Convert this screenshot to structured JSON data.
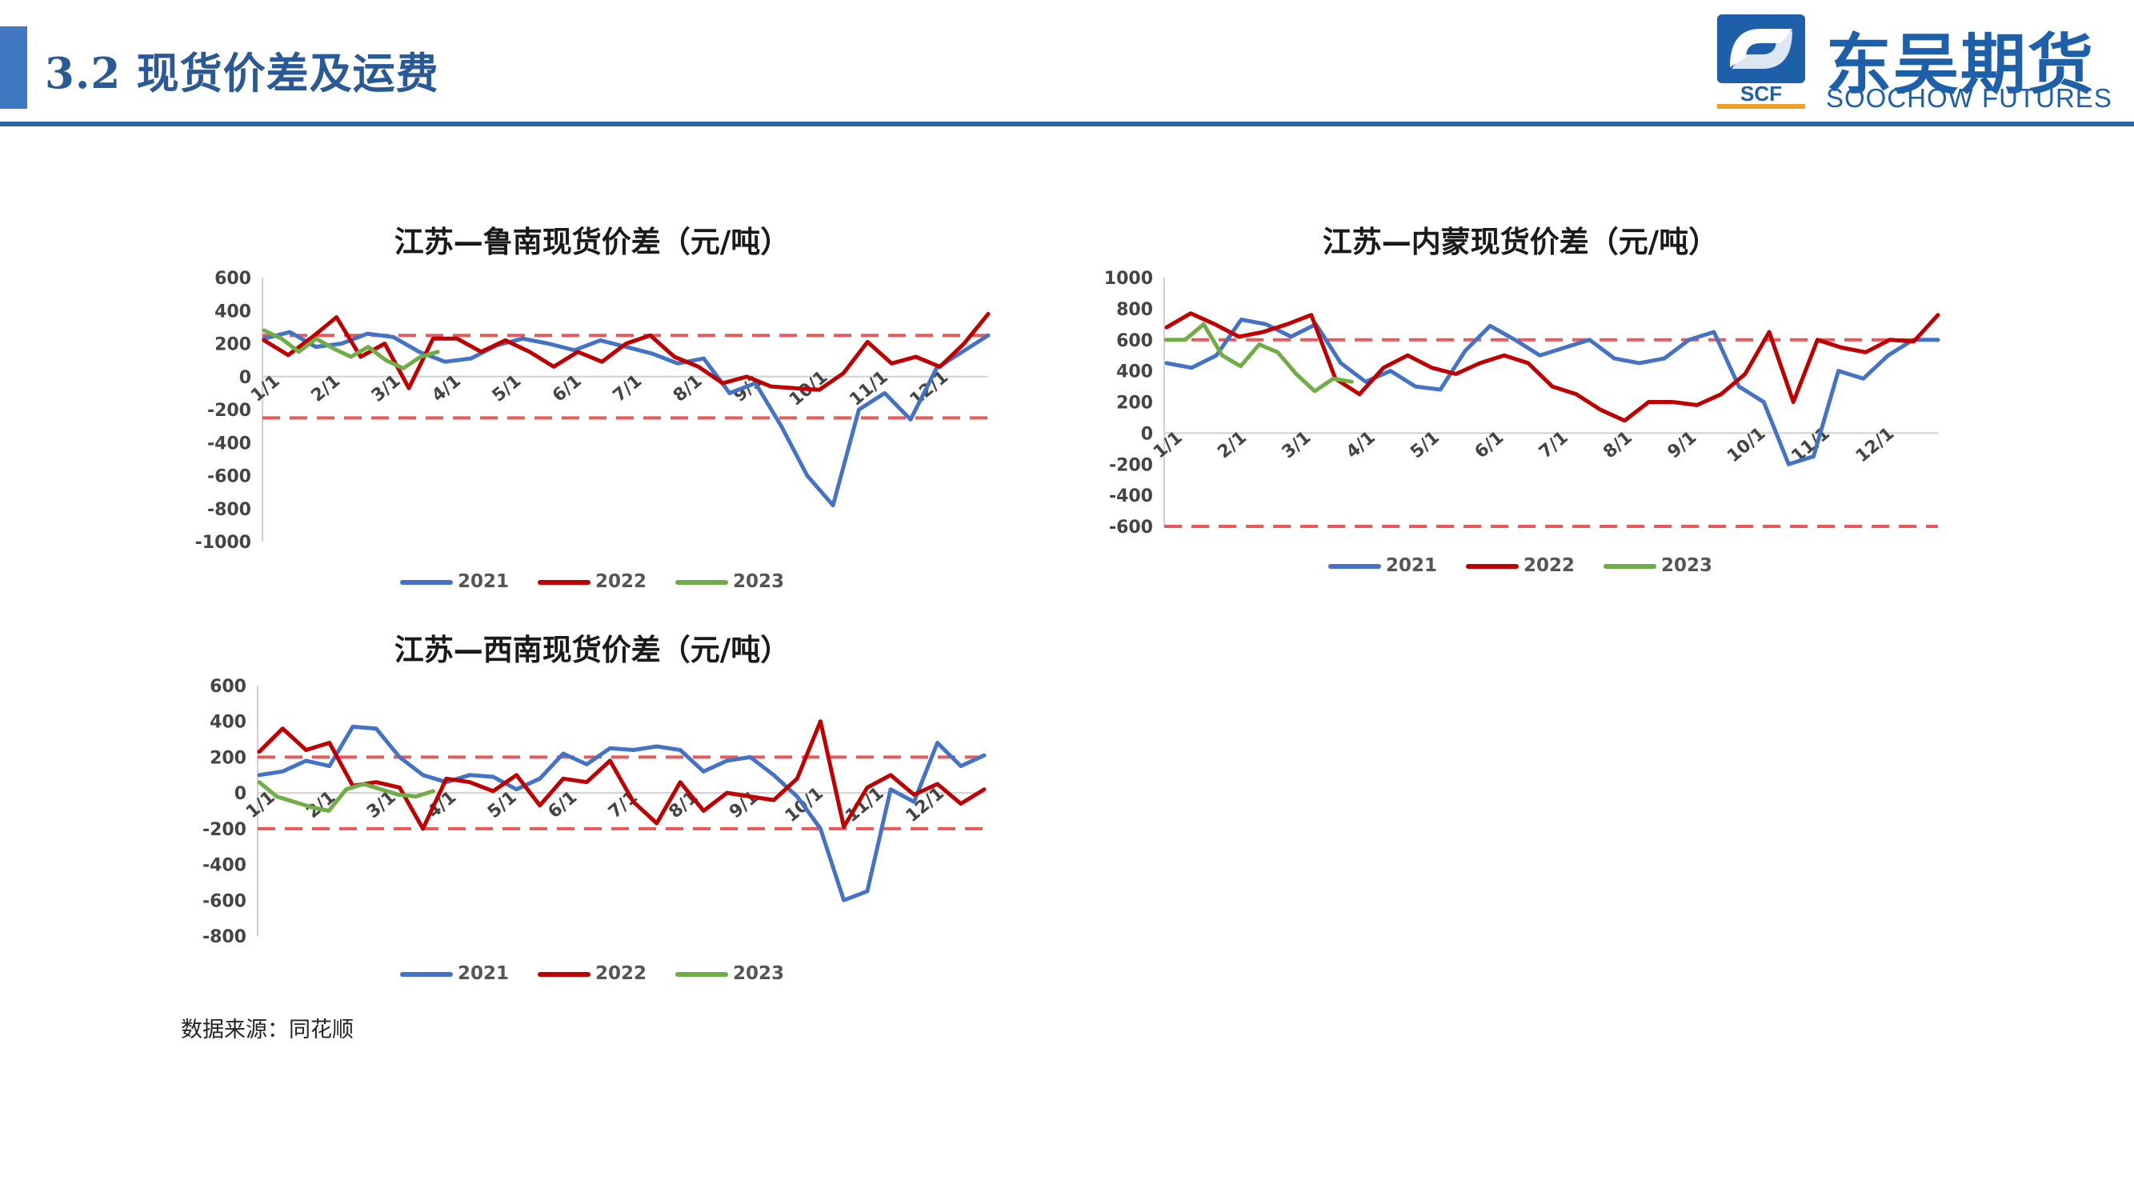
{
  "header": {
    "title": "3.2 现货价差及运费",
    "logo_cn": "东吴期货",
    "logo_en": "SOOCHOW FUTURES",
    "logo_mark_text": "SCF"
  },
  "source": "数据来源：同花顺",
  "colors": {
    "s2021": "#4472c4",
    "s2022": "#c00000",
    "s2023": "#70ad47",
    "ref": "#e85a5a",
    "accent": "#2d64a8"
  },
  "chart_data": [
    {
      "type": "line",
      "title": "江苏—鲁南现货价差（元/吨）",
      "ylim": [
        -1000,
        600
      ],
      "yticks": [
        600,
        400,
        200,
        0,
        -200,
        -400,
        -600,
        -800,
        -1000
      ],
      "xticks": [
        "1/1",
        "2/1",
        "3/1",
        "4/1",
        "5/1",
        "6/1",
        "7/1",
        "8/1",
        "9/1",
        "10/1",
        "11/1",
        "12/1"
      ],
      "ref_lines": [
        250,
        -250
      ],
      "series": [
        {
          "name": "2021",
          "values": [
            230,
            270,
            180,
            200,
            260,
            240,
            150,
            90,
            110,
            190,
            230,
            200,
            160,
            220,
            180,
            140,
            80,
            110,
            -100,
            -40,
            -300,
            -600,
            -780,
            -200,
            -100,
            -260,
            50,
            150,
            250
          ]
        },
        {
          "name": "2022",
          "values": [
            220,
            130,
            240,
            360,
            120,
            200,
            -70,
            230,
            230,
            150,
            220,
            150,
            60,
            150,
            90,
            200,
            250,
            120,
            60,
            -40,
            0,
            -60,
            -70,
            -80,
            20,
            210,
            80,
            120,
            60,
            200,
            380
          ]
        },
        {
          "name": "2023",
          "values": [
            280,
            230,
            150,
            230,
            170,
            120,
            180,
            100,
            50,
            120,
            150
          ]
        }
      ]
    },
    {
      "type": "line",
      "title": "江苏—内蒙现货价差（元/吨）",
      "ylim": [
        -600,
        1000
      ],
      "yticks": [
        1000,
        800,
        600,
        400,
        200,
        0,
        -200,
        -400,
        -600
      ],
      "xticks": [
        "1/1",
        "2/1",
        "3/1",
        "4/1",
        "5/1",
        "6/1",
        "7/1",
        "8/1",
        "9/1",
        "10/1",
        "11/1",
        "12/1"
      ],
      "ref_lines": [
        600,
        -600
      ],
      "series": [
        {
          "name": "2021",
          "values": [
            450,
            420,
            500,
            730,
            700,
            620,
            700,
            450,
            330,
            400,
            300,
            280,
            530,
            690,
            600,
            500,
            550,
            600,
            480,
            450,
            480,
            600,
            650,
            300,
            200,
            -200,
            -150,
            400,
            350,
            500,
            600,
            600
          ]
        },
        {
          "name": "2022",
          "values": [
            680,
            770,
            700,
            620,
            650,
            700,
            760,
            350,
            250,
            420,
            500,
            420,
            380,
            450,
            500,
            450,
            300,
            250,
            150,
            80,
            200,
            200,
            180,
            250,
            380,
            650,
            200,
            600,
            550,
            520,
            600,
            590,
            760
          ]
        },
        {
          "name": "2023",
          "values": [
            600,
            600,
            700,
            500,
            430,
            570,
            520,
            380,
            270,
            350,
            330
          ]
        }
      ]
    },
    {
      "type": "line",
      "title": "江苏—西南现货价差（元/吨）",
      "ylim": [
        -800,
        600
      ],
      "yticks": [
        600,
        400,
        200,
        0,
        -200,
        -400,
        -600,
        -800
      ],
      "xticks": [
        "1/1",
        "2/1",
        "3/1",
        "4/1",
        "5/1",
        "6/1",
        "7/1",
        "8/1",
        "9/1",
        "10/1",
        "11/1",
        "12/1"
      ],
      "ref_lines": [
        200,
        -200
      ],
      "series": [
        {
          "name": "2021",
          "values": [
            100,
            120,
            180,
            150,
            370,
            360,
            200,
            100,
            60,
            100,
            90,
            20,
            80,
            220,
            160,
            250,
            240,
            260,
            240,
            120,
            180,
            200,
            100,
            -20,
            -200,
            -600,
            -550,
            20,
            -50,
            280,
            150,
            210
          ]
        },
        {
          "name": "2022",
          "values": [
            230,
            360,
            240,
            280,
            40,
            60,
            30,
            -200,
            80,
            60,
            10,
            100,
            -70,
            80,
            60,
            180,
            -50,
            -170,
            60,
            -100,
            0,
            -20,
            -40,
            80,
            400,
            -190,
            30,
            100,
            -10,
            50,
            -60,
            20
          ]
        },
        {
          "name": "2023",
          "values": [
            60,
            -20,
            -50,
            -80,
            -100,
            20,
            50,
            20,
            -10,
            -20,
            10
          ]
        }
      ]
    }
  ]
}
